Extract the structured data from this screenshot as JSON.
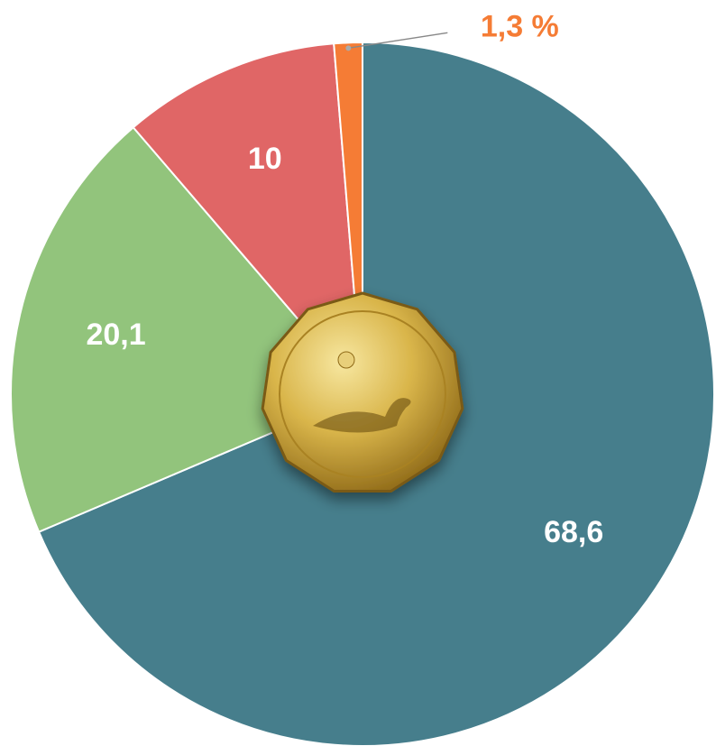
{
  "chart_data": {
    "type": "pie",
    "categories": [
      null,
      null,
      null,
      null
    ],
    "values": [
      68.6,
      20.1,
      10,
      1.3
    ],
    "value_labels": [
      "68,6",
      "20,1",
      "10",
      "1,3 %"
    ],
    "colors": [
      "#467e8c",
      "#92c47c",
      "#e06666",
      "#f57c35"
    ]
  }
}
